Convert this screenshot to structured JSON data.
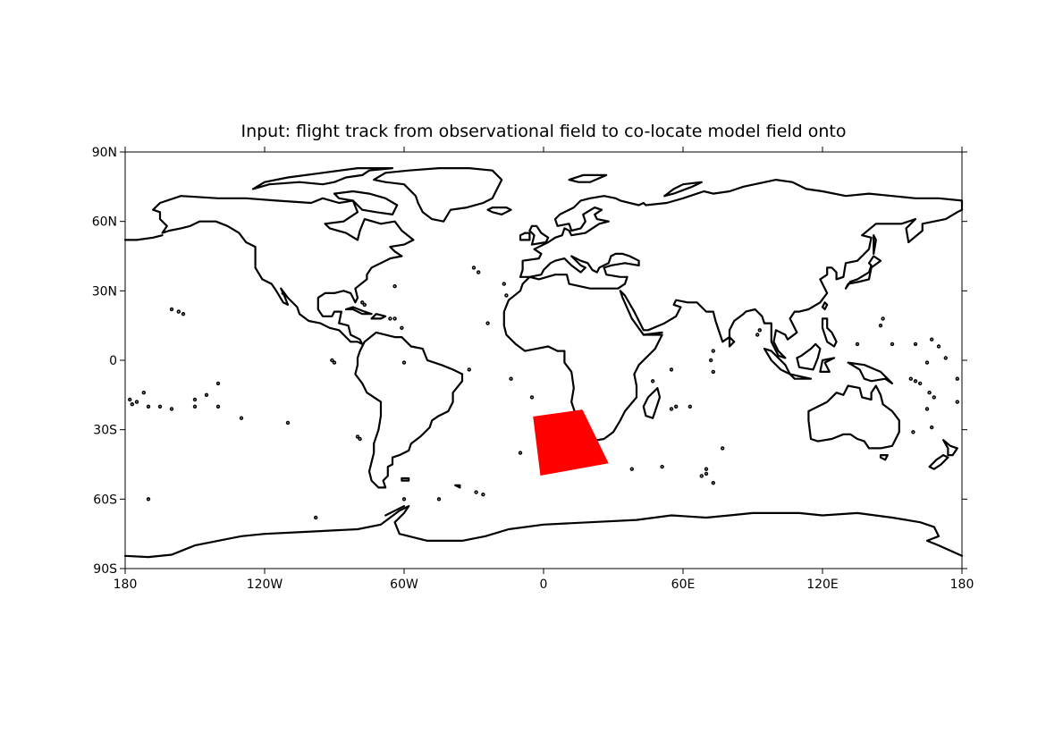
{
  "title": "Input: flight track from observational field to co-locate model field onto",
  "map": {
    "projection": "plate carree",
    "lon_range": [
      -180,
      180
    ],
    "lat_range": [
      -90,
      90
    ],
    "lon_ticks": [
      {
        "value": -180,
        "label": "180"
      },
      {
        "value": -120,
        "label": "120W"
      },
      {
        "value": -60,
        "label": "60W"
      },
      {
        "value": 0,
        "label": "0"
      },
      {
        "value": 60,
        "label": "60E"
      },
      {
        "value": 120,
        "label": "120E"
      },
      {
        "value": 180,
        "label": "180"
      }
    ],
    "lat_ticks": [
      {
        "value": 90,
        "label": "90N"
      },
      {
        "value": 60,
        "label": "60N"
      },
      {
        "value": 30,
        "label": "30N"
      },
      {
        "value": 0,
        "label": "0"
      },
      {
        "value": -30,
        "label": "30S"
      },
      {
        "value": -60,
        "label": "60S"
      },
      {
        "value": -90,
        "label": "90S"
      }
    ],
    "coastline_color": "#000000",
    "region": {
      "name": "flight track region",
      "color": "#ff0000",
      "corners": [
        [
          -4.3,
          -24.5
        ],
        [
          16.6,
          -21.5
        ],
        [
          27.7,
          -44.4
        ],
        [
          -1.2,
          -49.6
        ]
      ]
    }
  }
}
